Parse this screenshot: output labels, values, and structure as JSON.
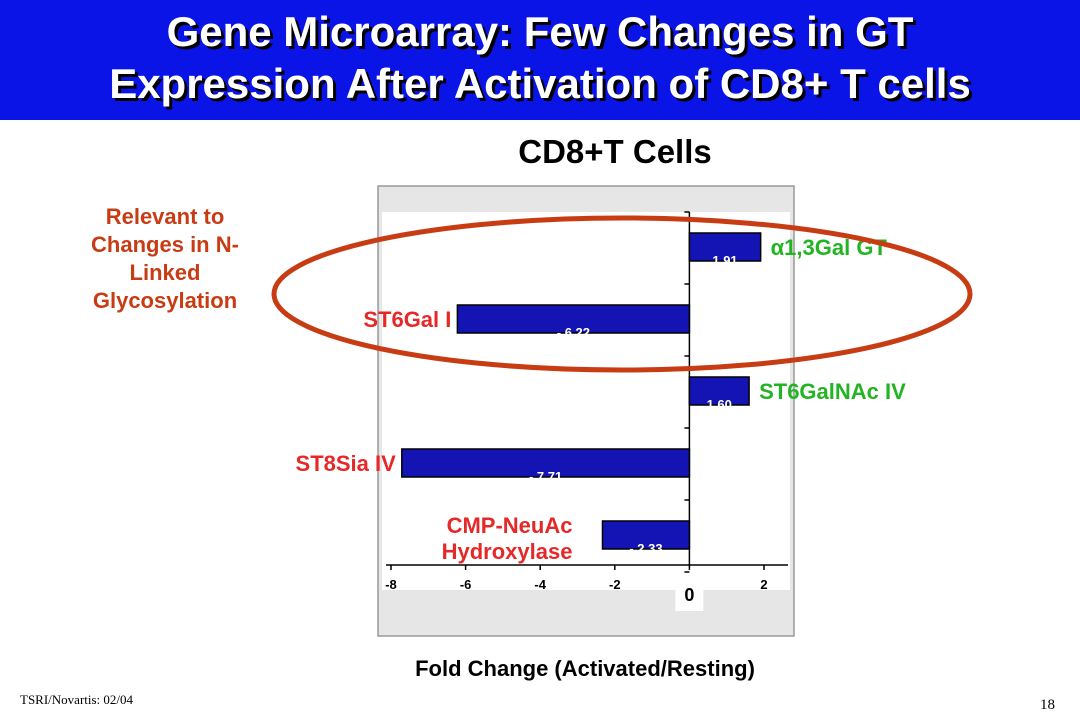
{
  "slide": {
    "title_line_1": "Gene Microarray: Few Changes in GT",
    "title_line_2": "Expression After Activation of CD8+ T cells",
    "relevant_note": "Relevant to Changes in N-Linked Glycosylation",
    "footer_left": "TSRI/Novartis: 02/04",
    "page_number": "18"
  },
  "colors": {
    "title_bar": "#0a14e6",
    "bar": "#1414b4",
    "label_increase": "#22b422",
    "label_decrease": "#e62828",
    "ellipse": "#c83c14",
    "note": "#c83c14"
  },
  "chart_data": {
    "type": "bar",
    "orientation": "horizontal",
    "title": "CD8+T Cells",
    "xlabel": "Fold Change (Activated/Resting)",
    "ylabel": "",
    "xlim": [
      -8,
      2
    ],
    "x_ticks": [
      -8,
      -6,
      -4,
      -2,
      0,
      2
    ],
    "zero_label": "0",
    "grid": false,
    "categories": [
      "α1,3Gal GT",
      "ST6Gal I",
      "ST6GalNAc IV",
      "ST8Sia IV",
      "CMP-NeuAc Hydroxylase"
    ],
    "values": [
      1.91,
      -6.22,
      1.6,
      -7.71,
      -2.33
    ],
    "value_labels": [
      "1.91",
      "- 6.22",
      "1.60",
      "- 7.71",
      "- 2.33"
    ],
    "category_label_lines": [
      [
        "α1,3Gal GT"
      ],
      [
        "ST6Gal I"
      ],
      [
        "ST6GalNAc IV"
      ],
      [
        "ST8Sia IV"
      ],
      [
        "CMP-NeuAc",
        "Hydroxylase"
      ]
    ],
    "annotation": "ellipse around α1,3Gal GT and ST6Gal I"
  }
}
